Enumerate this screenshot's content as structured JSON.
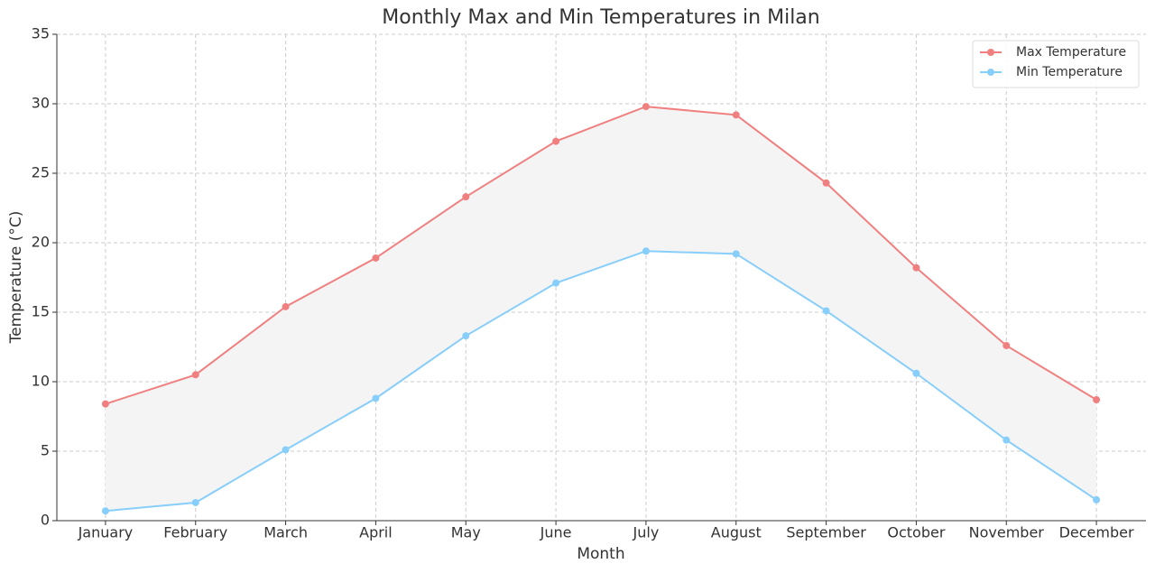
{
  "chart_data": {
    "type": "line",
    "title": "Monthly Max and Min Temperatures in Milan",
    "x_label": "Month",
    "y_label": "Temperature (°C)",
    "categories": [
      "January",
      "February",
      "March",
      "April",
      "May",
      "June",
      "July",
      "August",
      "September",
      "October",
      "November",
      "December"
    ],
    "series": [
      {
        "name": "Max Temperature",
        "color": "#f08080",
        "values": [
          8.4,
          10.5,
          15.4,
          18.9,
          23.3,
          27.3,
          29.8,
          29.2,
          24.3,
          18.2,
          12.6,
          8.7
        ]
      },
      {
        "name": "Min Temperature",
        "color": "#87cefa",
        "values": [
          0.7,
          1.3,
          5.1,
          8.8,
          13.3,
          17.1,
          19.4,
          19.2,
          15.1,
          10.6,
          5.8,
          1.5
        ]
      }
    ],
    "fill_between": true,
    "fill_color": "#f4f4f4",
    "ylim": [
      0,
      35
    ],
    "yticks": [
      0,
      5,
      10,
      15,
      20,
      25,
      30,
      35
    ],
    "grid": true,
    "legend": "upper right"
  }
}
